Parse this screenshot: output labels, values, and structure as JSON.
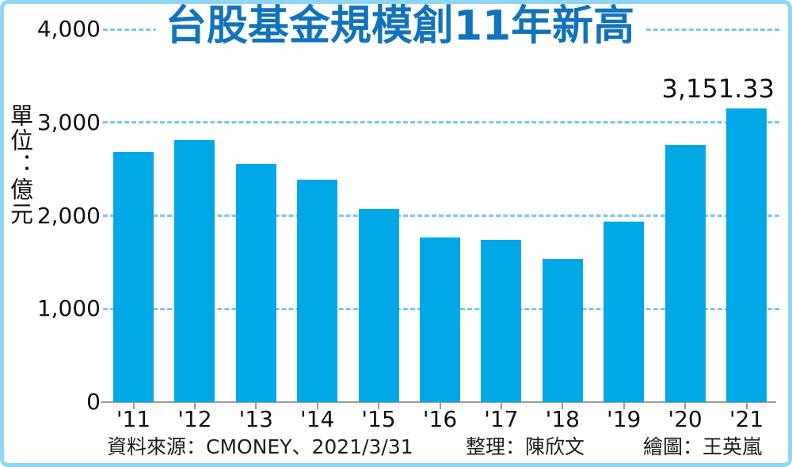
{
  "title": "台股基金規模創11年新高",
  "unit_label": "單位：億元",
  "peak_label": "3,151.33",
  "credits": {
    "source": "資料來源：CMONEY、2021/3/31",
    "editor": "整理：陳欣文",
    "illustrator": "繪圖：王英嵐"
  },
  "colors": {
    "bar": "#00A8E6",
    "title_text": "#1173BC",
    "gridline": "#79C7EC",
    "axis": "#9B9B9B",
    "text": "#111111",
    "frame_border": "#8FD6F2"
  },
  "chart_data": {
    "type": "bar",
    "title": "台股基金規模創11年新高",
    "categories": [
      "'11",
      "'12",
      "'13",
      "'14",
      "'15",
      "'16",
      "'17",
      "'18",
      "'19",
      "'20",
      "'21"
    ],
    "values": [
      2680,
      2810,
      2555,
      2385,
      2070,
      1765,
      1745,
      1540,
      1940,
      2760,
      3151.33
    ],
    "xlabel": "",
    "ylabel": "單位：億元",
    "ylim": [
      0,
      4000
    ],
    "yticks": [
      0,
      1000,
      2000,
      3000,
      4000
    ],
    "ytick_labels": [
      "0",
      "1,000",
      "2,000",
      "3,000",
      "4,000"
    ],
    "grid": "horizontal-dashed",
    "legend": "none",
    "annotations": [
      {
        "category": "'21",
        "text": "3,151.33",
        "position": "above-bar"
      }
    ]
  }
}
